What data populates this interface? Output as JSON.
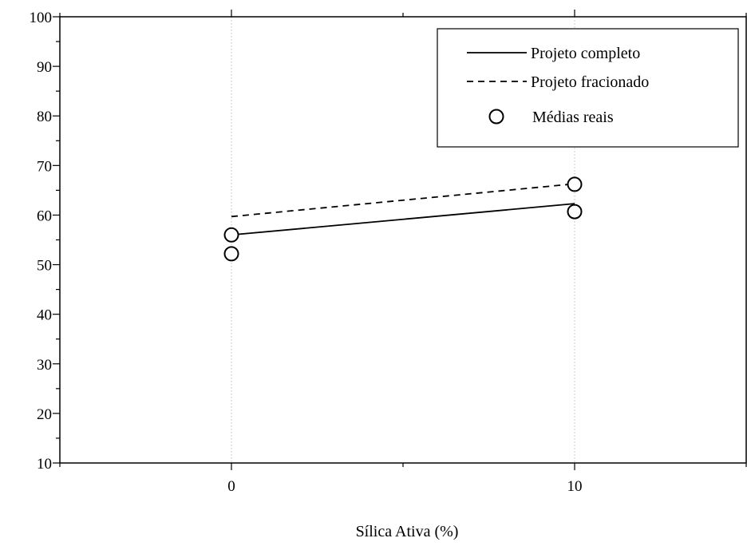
{
  "chart_data": {
    "type": "line",
    "xlabel": "Sílica Ativa (%)",
    "ylabel": "",
    "xlim": [
      -5,
      15
    ],
    "ylim": [
      10,
      100
    ],
    "x_ticks": [
      0,
      10
    ],
    "y_ticks": [
      10,
      20,
      30,
      40,
      50,
      60,
      70,
      80,
      90,
      100
    ],
    "grid": "vertical dotted lines at x ticks",
    "legend_position": "top-right",
    "series": [
      {
        "name": "Projeto completo",
        "style": "solid",
        "x": [
          0,
          10
        ],
        "y": [
          56,
          62.3
        ]
      },
      {
        "name": "Projeto fracionado",
        "style": "dashed",
        "x": [
          0,
          10
        ],
        "y": [
          59.7,
          66.3
        ]
      },
      {
        "name": "Médias reais",
        "style": "open-circle",
        "x": [
          0,
          0,
          10,
          10
        ],
        "y": [
          56,
          52.2,
          66.2,
          60.7
        ]
      }
    ],
    "colors": {
      "line": "#000000",
      "grid": "#bdbdbd",
      "background": "#ffffff"
    }
  }
}
